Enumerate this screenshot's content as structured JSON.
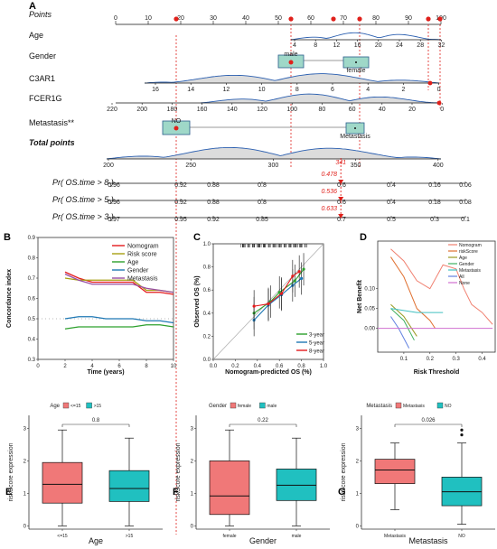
{
  "chart_data": [
    {
      "panel": "A",
      "type": "nomogram",
      "rows": [
        {
          "name": "Points",
          "style": "italic",
          "ticks": [
            "0",
            "10",
            "20",
            "30",
            "40",
            "50",
            "60",
            "70",
            "80",
            "90",
            "100"
          ]
        },
        {
          "name": "Age",
          "ticks_top": [
            "4",
            "8",
            "12",
            "16",
            "20",
            "24",
            "28",
            "32"
          ]
        },
        {
          "name": "Gender",
          "levels": [
            "male",
            "female"
          ]
        },
        {
          "name": "C3AR1",
          "ticks": [
            "16",
            "14",
            "12",
            "10",
            "8",
            "6",
            "4",
            "2",
            "0"
          ]
        },
        {
          "name": "FCER1G",
          "ticks": [
            "220",
            "200",
            "180",
            "160",
            "140",
            "120",
            "100",
            "80",
            "60",
            "40",
            "20",
            "0"
          ]
        },
        {
          "name": "Metastasis**",
          "levels": [
            "NO",
            "Metastasis"
          ]
        },
        {
          "name": "Total points",
          "style": "bold-italic",
          "ticks": [
            "200",
            "250",
            "300",
            "350",
            "400"
          ],
          "marker": 341
        }
      ],
      "probabilities": [
        {
          "name": "Pr( OS.time > 8 )",
          "ticks": [
            "0.96",
            "0.92",
            "0.88",
            "0.8",
            "0.6",
            "0.4",
            "0.16",
            "0.06"
          ],
          "value": "0.478"
        },
        {
          "name": "Pr( OS.time > 5 )",
          "ticks": [
            "0.96",
            "0.92",
            "0.88",
            "0.8",
            "0.6",
            "0.4",
            "0.18",
            "0.08"
          ],
          "value": "0.536"
        },
        {
          "name": "Pr( OS.time > 3 )",
          "ticks": [
            "0.97",
            "0.95",
            "0.92",
            "0.85",
            "0.7",
            "0.5",
            "0.3",
            "0.1"
          ],
          "value": "0.633"
        }
      ]
    },
    {
      "panel": "B",
      "type": "line",
      "xlabel": "Time (years)",
      "ylabel": "Concordance index",
      "xlim": [
        0,
        10
      ],
      "ylim": [
        0.3,
        0.9
      ],
      "xticks": [
        0,
        2,
        4,
        6,
        8,
        10
      ],
      "yticks": [
        0.3,
        0.4,
        0.5,
        0.6,
        0.7,
        0.8,
        0.9
      ],
      "x": [
        2,
        3,
        4,
        5,
        6,
        7,
        8,
        9,
        10
      ],
      "series": [
        {
          "name": "Nomogram",
          "color": "#e41a1c",
          "values": [
            0.73,
            0.7,
            0.68,
            0.68,
            0.68,
            0.68,
            0.63,
            0.63,
            0.62
          ]
        },
        {
          "name": "Risk score",
          "color": "#a8a010",
          "values": [
            0.7,
            0.69,
            0.69,
            0.69,
            0.69,
            0.69,
            0.64,
            0.64,
            0.63
          ]
        },
        {
          "name": "Age",
          "color": "#2ca02c",
          "values": [
            0.45,
            0.46,
            0.46,
            0.46,
            0.46,
            0.46,
            0.47,
            0.47,
            0.46
          ]
        },
        {
          "name": "Gender",
          "color": "#1f78b4",
          "values": [
            0.5,
            0.51,
            0.51,
            0.5,
            0.5,
            0.5,
            0.49,
            0.49,
            0.48
          ]
        },
        {
          "name": "Metastasis",
          "color": "#984ea3",
          "values": [
            0.72,
            0.69,
            0.67,
            0.67,
            0.67,
            0.67,
            0.65,
            0.64,
            0.63
          ]
        }
      ]
    },
    {
      "panel": "C",
      "type": "calibration",
      "xlabel": "Nomogram-predicted OS (%)",
      "ylabel": "Observed OS (%)",
      "xlim": [
        0,
        1
      ],
      "ylim": [
        0,
        1
      ],
      "ticks": [
        0.0,
        0.2,
        0.4,
        0.6,
        0.8,
        1.0
      ],
      "series": [
        {
          "name": "3-year",
          "color": "#2ca02c",
          "points": [
            [
              0.37,
              0.4
            ],
            [
              0.52,
              0.5
            ],
            [
              0.6,
              0.58
            ],
            [
              0.74,
              0.68
            ],
            [
              0.82,
              0.78
            ]
          ]
        },
        {
          "name": "5-year",
          "color": "#1f78b4",
          "points": [
            [
              0.37,
              0.34
            ],
            [
              0.5,
              0.47
            ],
            [
              0.62,
              0.56
            ],
            [
              0.72,
              0.64
            ],
            [
              0.8,
              0.7
            ]
          ]
        },
        {
          "name": "8-year",
          "color": "#e41a1c",
          "points": [
            [
              0.37,
              0.46
            ],
            [
              0.5,
              0.48
            ],
            [
              0.62,
              0.57
            ],
            [
              0.72,
              0.72
            ],
            [
              0.78,
              0.76
            ]
          ]
        }
      ]
    },
    {
      "panel": "D",
      "type": "line",
      "xlabel": "Risk Threshold",
      "ylabel": "Net Benefit",
      "xlim": [
        0,
        0.45
      ],
      "ylim": [
        -0.06,
        0.22
      ],
      "xticks": [
        0.1,
        0.2,
        0.3,
        0.4
      ],
      "yticks": [
        0.0,
        0.05,
        0.1
      ],
      "series": [
        {
          "name": "Nomogram",
          "color": "#f08070",
          "points": [
            [
              0.05,
              0.2
            ],
            [
              0.1,
              0.17
            ],
            [
              0.15,
              0.12
            ],
            [
              0.2,
              0.1
            ],
            [
              0.25,
              0.16
            ],
            [
              0.3,
              0.15
            ],
            [
              0.33,
              0.1
            ],
            [
              0.36,
              0.06
            ],
            [
              0.4,
              0.04
            ],
            [
              0.44,
              0.01
            ]
          ]
        },
        {
          "name": "riskScore",
          "color": "#e07030",
          "points": [
            [
              0.05,
              0.18
            ],
            [
              0.1,
              0.13
            ],
            [
              0.15,
              0.05
            ],
            [
              0.2,
              0.02
            ],
            [
              0.22,
              0.0
            ]
          ]
        },
        {
          "name": "Age",
          "color": "#9a9a20",
          "points": [
            [
              0.05,
              0.06
            ],
            [
              0.1,
              0.03
            ],
            [
              0.15,
              -0.02
            ]
          ]
        },
        {
          "name": "Gender",
          "color": "#40b060",
          "points": [
            [
              0.05,
              0.05
            ],
            [
              0.1,
              0.02
            ],
            [
              0.14,
              -0.03
            ]
          ]
        },
        {
          "name": "Metastasis",
          "color": "#40c0c0",
          "points": [
            [
              0.05,
              0.05
            ],
            [
              0.15,
              0.04
            ],
            [
              0.25,
              0.04
            ]
          ]
        },
        {
          "name": "All",
          "color": "#6080e0",
          "points": [
            [
              0.05,
              0.03
            ],
            [
              0.08,
              0.0
            ],
            [
              0.12,
              -0.05
            ]
          ]
        },
        {
          "name": "None",
          "color": "#d070d0",
          "points": [
            [
              0.0,
              0.0
            ],
            [
              0.44,
              0.0
            ]
          ]
        }
      ]
    },
    {
      "panel": "E",
      "type": "boxplot",
      "legend_title": "Age",
      "xlabel": "Age",
      "ylabel": "riskScore expression",
      "ylim": [
        -0.1,
        3.4
      ],
      "yticks": [
        0,
        1,
        2,
        3
      ],
      "pvalue": "0.8",
      "groups": [
        {
          "name": "<=15",
          "color": "#f07878",
          "min": 0.0,
          "q1": 0.7,
          "median": 1.28,
          "q3": 1.95,
          "max": 2.95
        },
        {
          "name": ">15",
          "color": "#20c0c0",
          "min": 0.0,
          "q1": 0.75,
          "median": 1.15,
          "q3": 1.7,
          "max": 2.7
        }
      ]
    },
    {
      "panel": "F",
      "type": "boxplot",
      "legend_title": "Gender",
      "xlabel": "Gender",
      "ylabel": "riskScore expression",
      "ylim": [
        -0.1,
        3.4
      ],
      "yticks": [
        0,
        1,
        2,
        3
      ],
      "pvalue": "0.22",
      "groups": [
        {
          "name": "female",
          "color": "#f07878",
          "min": 0.0,
          "q1": 0.35,
          "median": 0.92,
          "q3": 2.0,
          "max": 2.95
        },
        {
          "name": "male",
          "color": "#20c0c0",
          "min": 0.0,
          "q1": 0.78,
          "median": 1.25,
          "q3": 1.75,
          "max": 2.7
        }
      ]
    },
    {
      "panel": "G",
      "type": "boxplot",
      "legend_title": "Metastasis",
      "xlabel": "Metastasis",
      "ylabel": "riskScore expression",
      "ylim": [
        -0.1,
        3.4
      ],
      "yticks": [
        0,
        1,
        2,
        3
      ],
      "pvalue": "0.026",
      "groups": [
        {
          "name": "Metastasis",
          "color": "#f07878",
          "min": 0.5,
          "q1": 1.3,
          "median": 1.72,
          "q3": 2.05,
          "max": 2.55
        },
        {
          "name": "NO",
          "color": "#20c0c0",
          "min": 0.05,
          "q1": 0.62,
          "median": 1.05,
          "q3": 1.5,
          "max": 2.55,
          "outliers": [
            2.8,
            2.95
          ]
        }
      ]
    }
  ]
}
